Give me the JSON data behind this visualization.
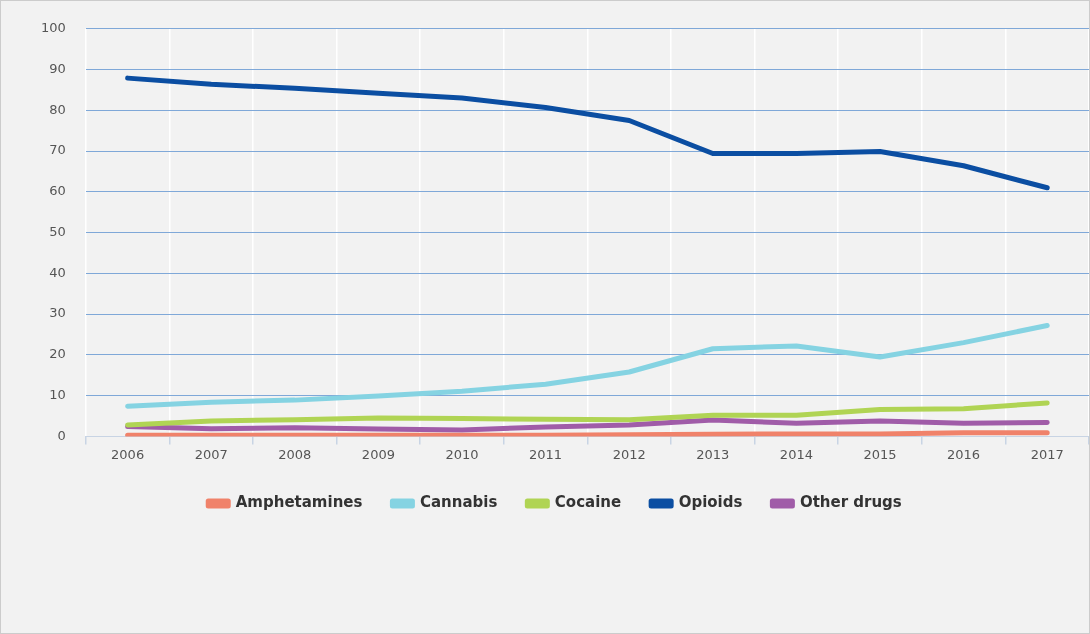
{
  "chart_data": {
    "type": "line",
    "categories": [
      "2006",
      "2007",
      "2008",
      "2009",
      "2010",
      "2011",
      "2012",
      "2013",
      "2014",
      "2015",
      "2016",
      "2017"
    ],
    "series": [
      {
        "name": "Amphetamines",
        "color": "#f0826a",
        "values": [
          0.3,
          0.3,
          0.3,
          0.3,
          0.3,
          0.3,
          0.4,
          0.5,
          0.6,
          0.6,
          0.9,
          0.9
        ]
      },
      {
        "name": "Cannabis",
        "color": "#85d3e2",
        "values": [
          7.4,
          8.4,
          8.9,
          9.9,
          11.1,
          12.8,
          15.8,
          21.5,
          22.2,
          19.5,
          23,
          27.2
        ]
      },
      {
        "name": "Cocaine",
        "color": "#b0d454",
        "values": [
          2.8,
          3.8,
          4.1,
          4.5,
          4.4,
          4.2,
          4.1,
          5.2,
          5.2,
          6.6,
          6.8,
          8.2
        ]
      },
      {
        "name": "Opioids",
        "color": "#0b4ea2",
        "values": [
          87.9,
          86.4,
          85.4,
          84.2,
          83,
          80.7,
          77.5,
          69.4,
          69.4,
          69.9,
          66.4,
          61
        ]
      },
      {
        "name": "Other drugs",
        "color": "#a05ca8",
        "values": [
          2.4,
          1.9,
          2.1,
          1.8,
          1.6,
          2.3,
          2.8,
          4,
          3.2,
          3.8,
          3.2,
          3.4
        ]
      }
    ],
    "ylim": [
      0,
      100
    ],
    "yticks": [
      0,
      10,
      20,
      30,
      40,
      50,
      60,
      70,
      80,
      90,
      100
    ],
    "grid": true,
    "legend": "bottom",
    "marker": "none",
    "line_style": "solid"
  }
}
